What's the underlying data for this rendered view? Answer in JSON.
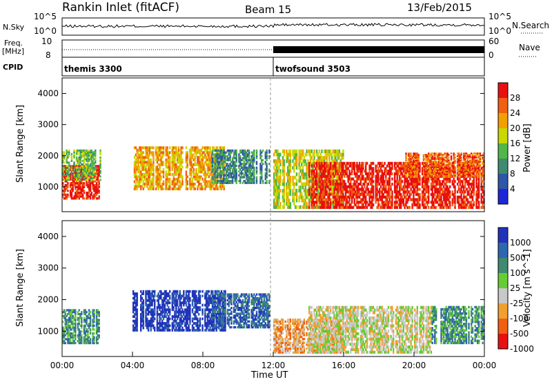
{
  "header": {
    "title": "Rankin Inlet (fitACF)",
    "beam": "Beam 15",
    "date": "13/Feb/2015"
  },
  "left_labels": {
    "nsky": "N.Sky",
    "freq_line1": "Freq.",
    "freq_line2": "[MHz]",
    "cpid": "CPID"
  },
  "right_labels": {
    "nsearch": "N.Search",
    "nave": "Nave"
  },
  "nsky_ticks": {
    "top": "10^5",
    "bottom": "10^0"
  },
  "freq_ticks": {
    "top": "10",
    "bottom": "8"
  },
  "nave_ticks": {
    "top": "60",
    "bottom": "0"
  },
  "cpid_programs": [
    {
      "label": "themis 3300",
      "start_hour": 0
    },
    {
      "label": "twofsound 3503",
      "start_hour": 12
    }
  ],
  "colors": {
    "power": [
      "#1c28d8",
      "#2f56a8",
      "#3f8a70",
      "#52b648",
      "#c8d800",
      "#f2a000",
      "#f06010",
      "#e81010"
    ],
    "velocity": [
      "#2233bb",
      "#2f66b0",
      "#3f8a70",
      "#66cc33",
      "#c8c8c8",
      "#f0a030",
      "#f06010",
      "#e81010"
    ]
  },
  "chart_data": [
    {
      "type": "heatmap",
      "name": "power",
      "ylabel": "Slant Range [km]",
      "xlabel": "",
      "x_range_hours": [
        0,
        24
      ],
      "ylim": [
        200,
        4500
      ],
      "y_ticks": [
        "1000",
        "2000",
        "3000",
        "4000"
      ],
      "colorbar_label": "Power [dB]",
      "colorbar_ticks": [
        "4",
        "8",
        "12",
        "16",
        "20",
        "24",
        "28"
      ],
      "regions": [
        {
          "t0": 0.0,
          "t1": 2.2,
          "r0": 600,
          "r1": 1700,
          "level": 7
        },
        {
          "t0": 0.0,
          "t1": 2.2,
          "r0": 1200,
          "r1": 2200,
          "level": 3
        },
        {
          "t0": 4.0,
          "t1": 9.3,
          "r0": 900,
          "r1": 2300,
          "level": 5
        },
        {
          "t0": 8.5,
          "t1": 11.8,
          "r0": 1100,
          "r1": 2200,
          "level": 2
        },
        {
          "t0": 12.0,
          "t1": 16.0,
          "r0": 300,
          "r1": 2200,
          "level": 4
        },
        {
          "t0": 14.0,
          "t1": 24.0,
          "r0": 300,
          "r1": 1800,
          "level": 7
        },
        {
          "t0": 19.5,
          "t1": 24.0,
          "r0": 1300,
          "r1": 2100,
          "level": 6
        }
      ]
    },
    {
      "type": "heatmap",
      "name": "velocity",
      "ylabel": "Slant Range [km]",
      "xlabel": "Time UT",
      "x_range_hours": [
        0,
        24
      ],
      "x_ticks": [
        "00:00",
        "04:00",
        "08:00",
        "12:00",
        "16:00",
        "20:00",
        "00:00"
      ],
      "ylim": [
        200,
        4500
      ],
      "y_ticks": [
        "1000",
        "2000",
        "3000",
        "4000"
      ],
      "colorbar_label": "Velocity [m s^-1]",
      "colorbar_ticks": [
        "1000",
        "500",
        "100",
        "25",
        "-25",
        "-100",
        "-500",
        "-1000"
      ],
      "regions": [
        {
          "t0": 0.0,
          "t1": 2.2,
          "r0": 600,
          "r1": 1700,
          "level": 2
        },
        {
          "t0": 4.0,
          "t1": 9.3,
          "r0": 1000,
          "r1": 2300,
          "level": 0
        },
        {
          "t0": 8.5,
          "t1": 11.8,
          "r0": 1100,
          "r1": 2200,
          "level": 1
        },
        {
          "t0": 12.0,
          "t1": 16.0,
          "r0": 300,
          "r1": 1400,
          "level": 5
        },
        {
          "t0": 14.0,
          "t1": 21.0,
          "r0": 300,
          "r1": 1800,
          "level": 4
        },
        {
          "t0": 21.0,
          "t1": 24.0,
          "r0": 600,
          "r1": 1800,
          "level": 2
        }
      ]
    }
  ]
}
